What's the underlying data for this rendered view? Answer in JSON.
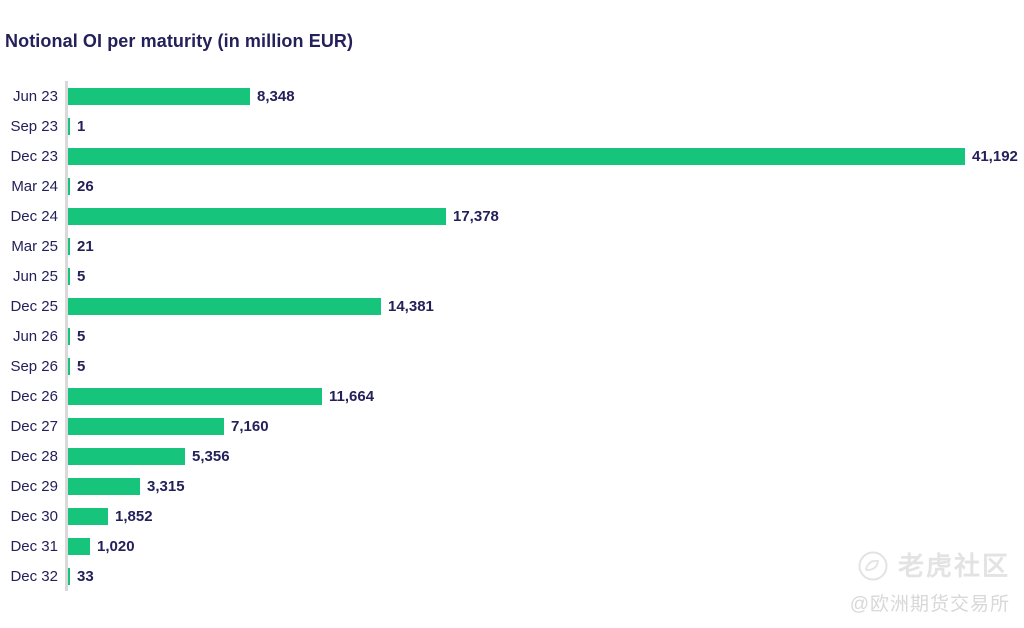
{
  "header": {
    "title": "Notional OI per maturity (in million EUR)"
  },
  "chart_data": {
    "type": "bar",
    "orientation": "horizontal",
    "title": "Notional OI per maturity (in million EUR)",
    "unit": "million EUR",
    "categories": [
      "Jun 23",
      "Sep 23",
      "Dec 23",
      "Mar 24",
      "Dec 24",
      "Mar 25",
      "Jun 25",
      "Dec 25",
      "Jun 26",
      "Sep 26",
      "Dec 26",
      "Dec 27",
      "Dec 28",
      "Dec 29",
      "Dec 30",
      "Dec 31",
      "Dec 32"
    ],
    "values": [
      8348,
      1,
      41192,
      26,
      17378,
      21,
      5,
      14381,
      5,
      5,
      11664,
      7160,
      5356,
      3315,
      1852,
      1020,
      33
    ],
    "value_labels": [
      "8,348",
      "1",
      "41,192",
      "26",
      "17,378",
      "21",
      "5",
      "14,381",
      "5",
      "5",
      "11,664",
      "7,160",
      "5,356",
      "3,315",
      "1,852",
      "1,020",
      "33"
    ],
    "xlim": [
      0,
      41192
    ],
    "grid": false,
    "legend": null,
    "data_labels": "end-of-bar",
    "bar_color": "#17c47c",
    "text_color": "#23205a",
    "axis_line_color": "#d9d9d9"
  },
  "watermark": {
    "brand": "老虎社区",
    "handle": "@欧洲期货交易所",
    "logo_icon": "tiger-circle-icon",
    "brand_color": "#e3e3e3",
    "handle_color": "#d8d8d8"
  }
}
